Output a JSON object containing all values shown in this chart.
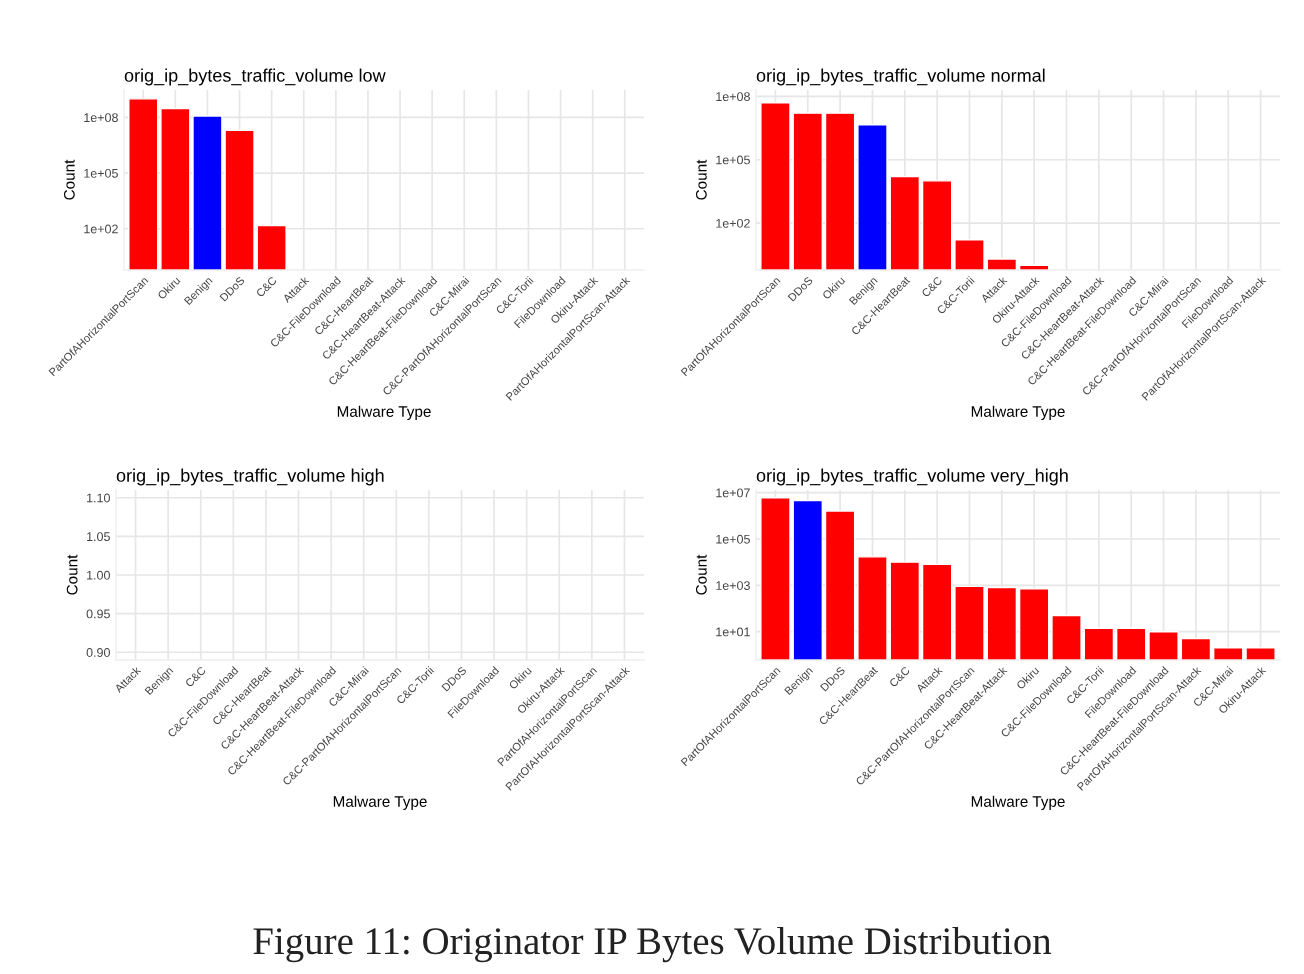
{
  "chart_data": [
    {
      "type": "bar",
      "title": "orig_ip_bytes_traffic_volume low",
      "xlabel": "Malware Type",
      "ylabel": "Count",
      "log": "y",
      "grid": true,
      "categories": [
        "PartOfAHorizontalPortScan",
        "Okiru",
        "Benign",
        "DDoS",
        "C&C",
        "Attack",
        "C&C-FileDownload",
        "C&C-HeartBeat",
        "C&C-HeartBeat-Attack",
        "C&C-HeartBeat-FileDownload",
        "C&C-Mirai",
        "C&C-PartOfAHorizontalPortScan",
        "C&C-Torii",
        "FileDownload",
        "Okiru-Attack",
        "PartOfAHorizontalPortScan-Attack"
      ],
      "values": [
        1000000000.0,
        300000000.0,
        120000000.0,
        20000000.0,
        150,
        null,
        null,
        null,
        null,
        null,
        null,
        null,
        null,
        null,
        null,
        null
      ],
      "colors": [
        "#ff0000",
        "#ff0000",
        "#0000ff",
        "#ff0000",
        "#ff0000",
        "#ff0000",
        "#ff0000",
        "#ff0000",
        "#ff0000",
        "#ff0000",
        "#ff0000",
        "#ff0000",
        "#ff0000",
        "#ff0000",
        "#ff0000",
        "#ff0000"
      ],
      "ylim": [
        0.6,
        3000000000.0
      ],
      "yticks": [
        {
          "value": 100,
          "label": "1e+02"
        },
        {
          "value": 100000,
          "label": "1e+05"
        },
        {
          "value": 100000000,
          "label": "1e+08"
        }
      ]
    },
    {
      "type": "bar",
      "title": "orig_ip_bytes_traffic_volume normal",
      "xlabel": "Malware Type",
      "ylabel": "Count",
      "log": "y",
      "grid": true,
      "categories": [
        "PartOfAHorizontalPortScan",
        "DDoS",
        "Okiru",
        "Benign",
        "C&C-HeartBeat",
        "C&C",
        "C&C-Torii",
        "Attack",
        "Okiru-Attack",
        "C&C-FileDownload",
        "C&C-HeartBeat-Attack",
        "C&C-HeartBeat-FileDownload",
        "C&C-Mirai",
        "C&C-PartOfAHorizontalPortScan",
        "FileDownload",
        "PartOfAHorizontalPortScan-Attack"
      ],
      "values": [
        50000000.0,
        16000000.0,
        16000000.0,
        4500000.0,
        16000,
        10000,
        16,
        2,
        1,
        null,
        null,
        null,
        null,
        null,
        null,
        null
      ],
      "colors": [
        "#ff0000",
        "#ff0000",
        "#ff0000",
        "#0000ff",
        "#ff0000",
        "#ff0000",
        "#ff0000",
        "#ff0000",
        "#ff0000",
        "#ff0000",
        "#ff0000",
        "#ff0000",
        "#ff0000",
        "#ff0000",
        "#ff0000",
        "#ff0000"
      ],
      "ylim": [
        0.6,
        200000000.0
      ],
      "yticks": [
        {
          "value": 100,
          "label": "1e+02"
        },
        {
          "value": 100000,
          "label": "1e+05"
        },
        {
          "value": 100000000,
          "label": "1e+08"
        }
      ]
    },
    {
      "type": "bar",
      "title": "orig_ip_bytes_traffic_volume high",
      "xlabel": "Malware Type",
      "ylabel": "Count",
      "grid": true,
      "categories": [
        "Attack",
        "Benign",
        "C&C",
        "C&C-FileDownload",
        "C&C-HeartBeat",
        "C&C-HeartBeat-Attack",
        "C&C-HeartBeat-FileDownload",
        "C&C-Mirai",
        "C&C-PartOfAHorizontalPortScan",
        "C&C-Torii",
        "DDoS",
        "FileDownload",
        "Okiru",
        "Okiru-Attack",
        "PartOfAHorizontalPortScan",
        "PartOfAHorizontalPortScan-Attack"
      ],
      "values": [
        null,
        null,
        null,
        null,
        null,
        null,
        null,
        null,
        null,
        null,
        null,
        null,
        null,
        null,
        null,
        null
      ],
      "ylim": [
        0.89,
        1.11
      ],
      "yticks": [
        {
          "value": 0.9,
          "label": "0.90"
        },
        {
          "value": 0.95,
          "label": "0.95"
        },
        {
          "value": 1.0,
          "label": "1.00"
        },
        {
          "value": 1.05,
          "label": "1.05"
        },
        {
          "value": 1.1,
          "label": "1.10"
        }
      ]
    },
    {
      "type": "bar",
      "title": "orig_ip_bytes_traffic_volume very_high",
      "xlabel": "Malware Type",
      "ylabel": "Count",
      "log": "y",
      "grid": true,
      "categories": [
        "PartOfAHorizontalPortScan",
        "Benign",
        "DDoS",
        "C&C-HeartBeat",
        "C&C",
        "Attack",
        "C&C-PartOfAHorizontalPortScan",
        "C&C-HeartBeat-Attack",
        "Okiru",
        "C&C-FileDownload",
        "C&C-Torii",
        "FileDownload",
        "C&C-HeartBeat-FileDownload",
        "PartOfAHorizontalPortScan-Attack",
        "C&C-Mirai",
        "Okiru-Attack"
      ],
      "values": [
        6000000.0,
        4500000.0,
        1600000.0,
        17000,
        10000,
        8000,
        900,
        800,
        700,
        50,
        14,
        14,
        10,
        5,
        2,
        2
      ],
      "colors": [
        "#ff0000",
        "#0000ff",
        "#ff0000",
        "#ff0000",
        "#ff0000",
        "#ff0000",
        "#ff0000",
        "#ff0000",
        "#ff0000",
        "#ff0000",
        "#ff0000",
        "#ff0000",
        "#ff0000",
        "#ff0000",
        "#ff0000",
        "#ff0000"
      ],
      "ylim": [
        0.6,
        13000000.0
      ],
      "yticks": [
        {
          "value": 10,
          "label": "1e+01"
        },
        {
          "value": 1000,
          "label": "1e+03"
        },
        {
          "value": 100000,
          "label": "1e+05"
        },
        {
          "value": 10000000,
          "label": "1e+07"
        }
      ],
      "annotations": [
        "Figure 11: Originator IP Bytes Volume Distribution"
      ]
    }
  ]
}
